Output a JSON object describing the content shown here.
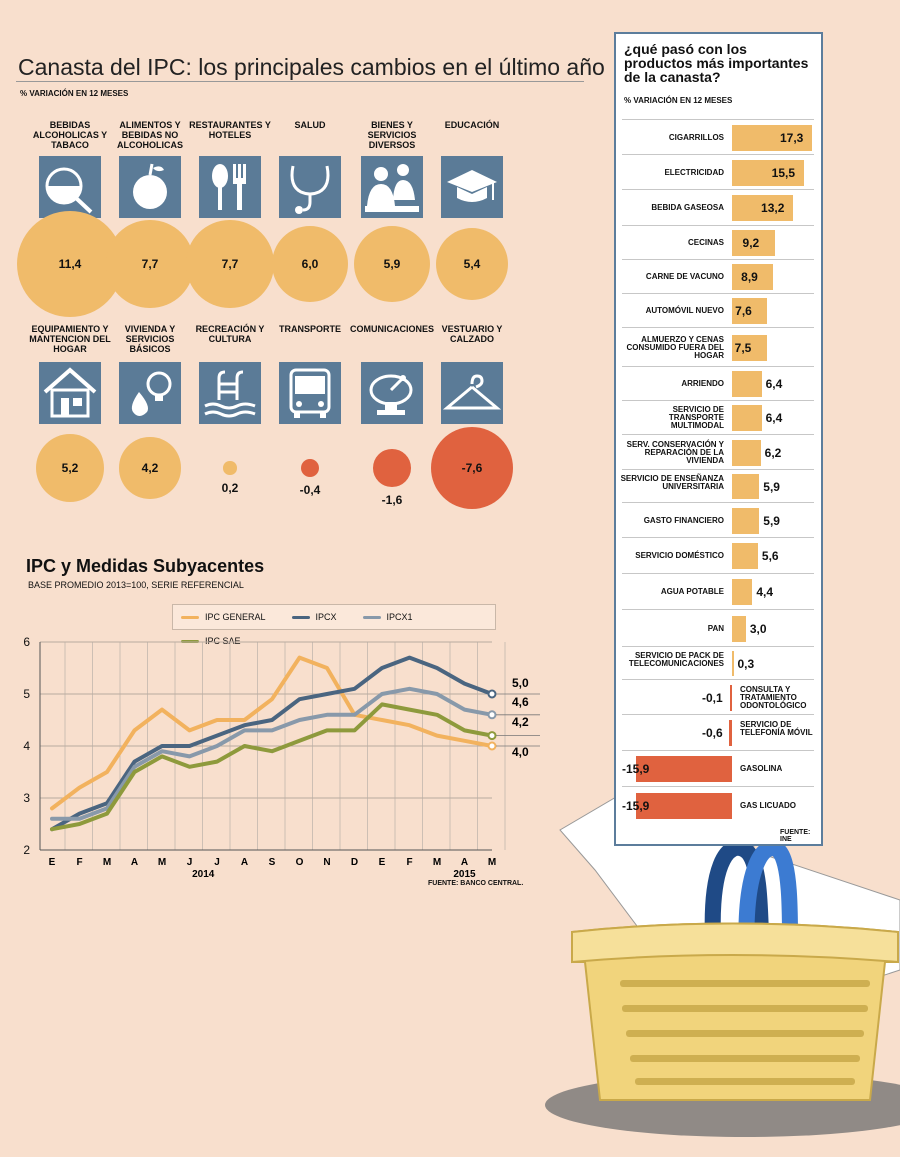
{
  "header": {
    "title": "Canasta del IPC: los principales cambios en el último año",
    "subtitle": "% VARIACIÓN EN 12 MESES"
  },
  "categories": [
    {
      "label": "BEBIDAS ALCOHOLICAS Y TABACO",
      "value": 11.4,
      "display": "11,4",
      "icon": "wine-glass-icon"
    },
    {
      "label": "ALIMENTOS Y BEBIDAS NO ALCOHOLICAS",
      "value": 7.7,
      "display": "7,7",
      "icon": "apple-icon"
    },
    {
      "label": "RESTAURANTES Y HOTELES",
      "value": 7.7,
      "display": "7,7",
      "icon": "spoon-fork-icon"
    },
    {
      "label": "SALUD",
      "value": 6.0,
      "display": "6,0",
      "icon": "stethoscope-icon"
    },
    {
      "label": "BIENES Y SERVICIOS DIVERSOS",
      "value": 5.9,
      "display": "5,9",
      "icon": "people-icon"
    },
    {
      "label": "EDUCACIÓN",
      "value": 5.4,
      "display": "5,4",
      "icon": "graduation-cap-icon"
    },
    {
      "label": "EQUIPAMIENTO Y MANTENCION DEL HOGAR",
      "value": 5.2,
      "display": "5,2",
      "icon": "house-icon"
    },
    {
      "label": "VIVIENDA Y SERVICIOS BÁSICOS",
      "value": 4.2,
      "display": "4,2",
      "icon": "bulb-drop-icon"
    },
    {
      "label": "RECREACIÓN Y CULTURA",
      "value": 0.2,
      "display": "0,2",
      "icon": "pool-ladder-icon"
    },
    {
      "label": "TRANSPORTE",
      "value": -0.4,
      "display": "-0,4",
      "icon": "bus-icon"
    },
    {
      "label": "COMUNICACIONES",
      "value": -1.6,
      "display": "-1,6",
      "icon": "satellite-dish-icon"
    },
    {
      "label": "VESTUARIO Y CALZADO",
      "value": -7.6,
      "display": "-7,6",
      "icon": "hanger-icon"
    }
  ],
  "colors": {
    "positive": "#f0bb6a",
    "negative": "#e0623f",
    "icon_bg": "#5b7b97",
    "ipc_general": "#f2b25e",
    "ipcx": "#4a6580",
    "ipcx1": "#8899aa",
    "ipc_sae": "#8e9a3c"
  },
  "line_chart": {
    "title": "IPC y Medidas Subyacentes",
    "subtitle": "BASE PROMEDIO 2013=100, SERIE REFERENCIAL",
    "source": "FUENTE: BANCO CENTRAL."
  },
  "chart_data": [
    {
      "type": "line",
      "title": "IPC y Medidas Subyacentes",
      "subtitle": "BASE PROMEDIO 2013=100, SERIE REFERENCIAL",
      "x": [
        "E",
        "F",
        "M",
        "A",
        "M",
        "J",
        "J",
        "A",
        "S",
        "O",
        "N",
        "D",
        "E",
        "F",
        "M",
        "A",
        "M"
      ],
      "year_labels": [
        {
          "label": "2014",
          "index": 5.5
        },
        {
          "label": "2015",
          "index": 15
        }
      ],
      "ylim": [
        2,
        6
      ],
      "yticks": [
        2,
        3,
        4,
        5,
        6
      ],
      "grid": true,
      "legend": "top",
      "end_labels": [
        "5,0",
        "4,6",
        "4,2",
        "4,0"
      ],
      "series": [
        {
          "name": "IPC GENERAL",
          "color": "#f2b25e",
          "values": [
            2.8,
            3.2,
            3.5,
            4.3,
            4.7,
            4.3,
            4.5,
            4.5,
            4.9,
            5.7,
            5.5,
            4.6,
            4.5,
            4.4,
            4.2,
            4.1,
            4.0
          ]
        },
        {
          "name": "IPCX",
          "color": "#4a6580",
          "values": [
            2.4,
            2.7,
            2.9,
            3.7,
            4.0,
            4.0,
            4.2,
            4.4,
            4.5,
            4.9,
            5.0,
            5.1,
            5.5,
            5.7,
            5.5,
            5.2,
            5.0
          ]
        },
        {
          "name": "IPCX1",
          "color": "#8899aa",
          "values": [
            2.6,
            2.6,
            2.8,
            3.6,
            3.9,
            3.8,
            4.0,
            4.3,
            4.3,
            4.5,
            4.6,
            4.6,
            5.0,
            5.1,
            5.0,
            4.7,
            4.6
          ]
        },
        {
          "name": "IPC SAE",
          "color": "#8e9a3c",
          "values": [
            2.4,
            2.5,
            2.7,
            3.5,
            3.8,
            3.6,
            3.7,
            4.0,
            3.9,
            4.1,
            4.3,
            4.3,
            4.8,
            4.7,
            4.6,
            4.3,
            4.2
          ]
        }
      ]
    },
    {
      "type": "bar",
      "title": "¿qué pasó con los productos más importantes de la canasta?",
      "subtitle": "% VARIACIÓN EN 12 MESES",
      "source": "FUENTE: INE",
      "categories": [
        "CIGARRILLOS",
        "ELECTRICIDAD",
        "BEBIDA GASEOSA",
        "CECINAS",
        "CARNE DE VACUNO",
        "AUTOMÓVIL NUEVO",
        "ALMUERZO Y CENAS CONSUMIDO FUERA DEL HOGAR",
        "ARRIENDO",
        "SERVICIO DE TRANSPORTE MULTIMODAL",
        "SERV. CONSERVACIÓN Y REPARACIÓN DE LA VIVIENDA",
        "SERVICIO DE ENSEÑANZA UNIVERSITARIA",
        "GASTO FINANCIERO",
        "SERVICIO DOMÉSTICO",
        "AGUA POTABLE",
        "PAN",
        "SERVICIO DE PACK DE TELECOMUNICACIONES",
        "CONSULTA Y TRATAMIENTO ODONTOLÓGICO",
        "SERVICIO DE TELEFONÍA MÓVIL",
        "GASOLINA",
        "GAS LICUADO"
      ],
      "values": [
        17.3,
        15.5,
        13.2,
        9.2,
        8.9,
        7.6,
        7.5,
        6.4,
        6.4,
        6.2,
        5.9,
        5.9,
        5.6,
        4.4,
        3.0,
        0.3,
        -0.1,
        -0.6,
        -15.9,
        -15.9
      ],
      "value_labels": [
        "17,3",
        "15,5",
        "13,2",
        "9,2",
        "8,9",
        "7,6",
        "7,5",
        "6,4",
        "6,4",
        "6,2",
        "5,9",
        "5,9",
        "5,6",
        "4,4",
        "3,0",
        "0,3",
        "-0,1",
        "-0,6",
        "-15,9",
        "-15,9"
      ]
    }
  ]
}
